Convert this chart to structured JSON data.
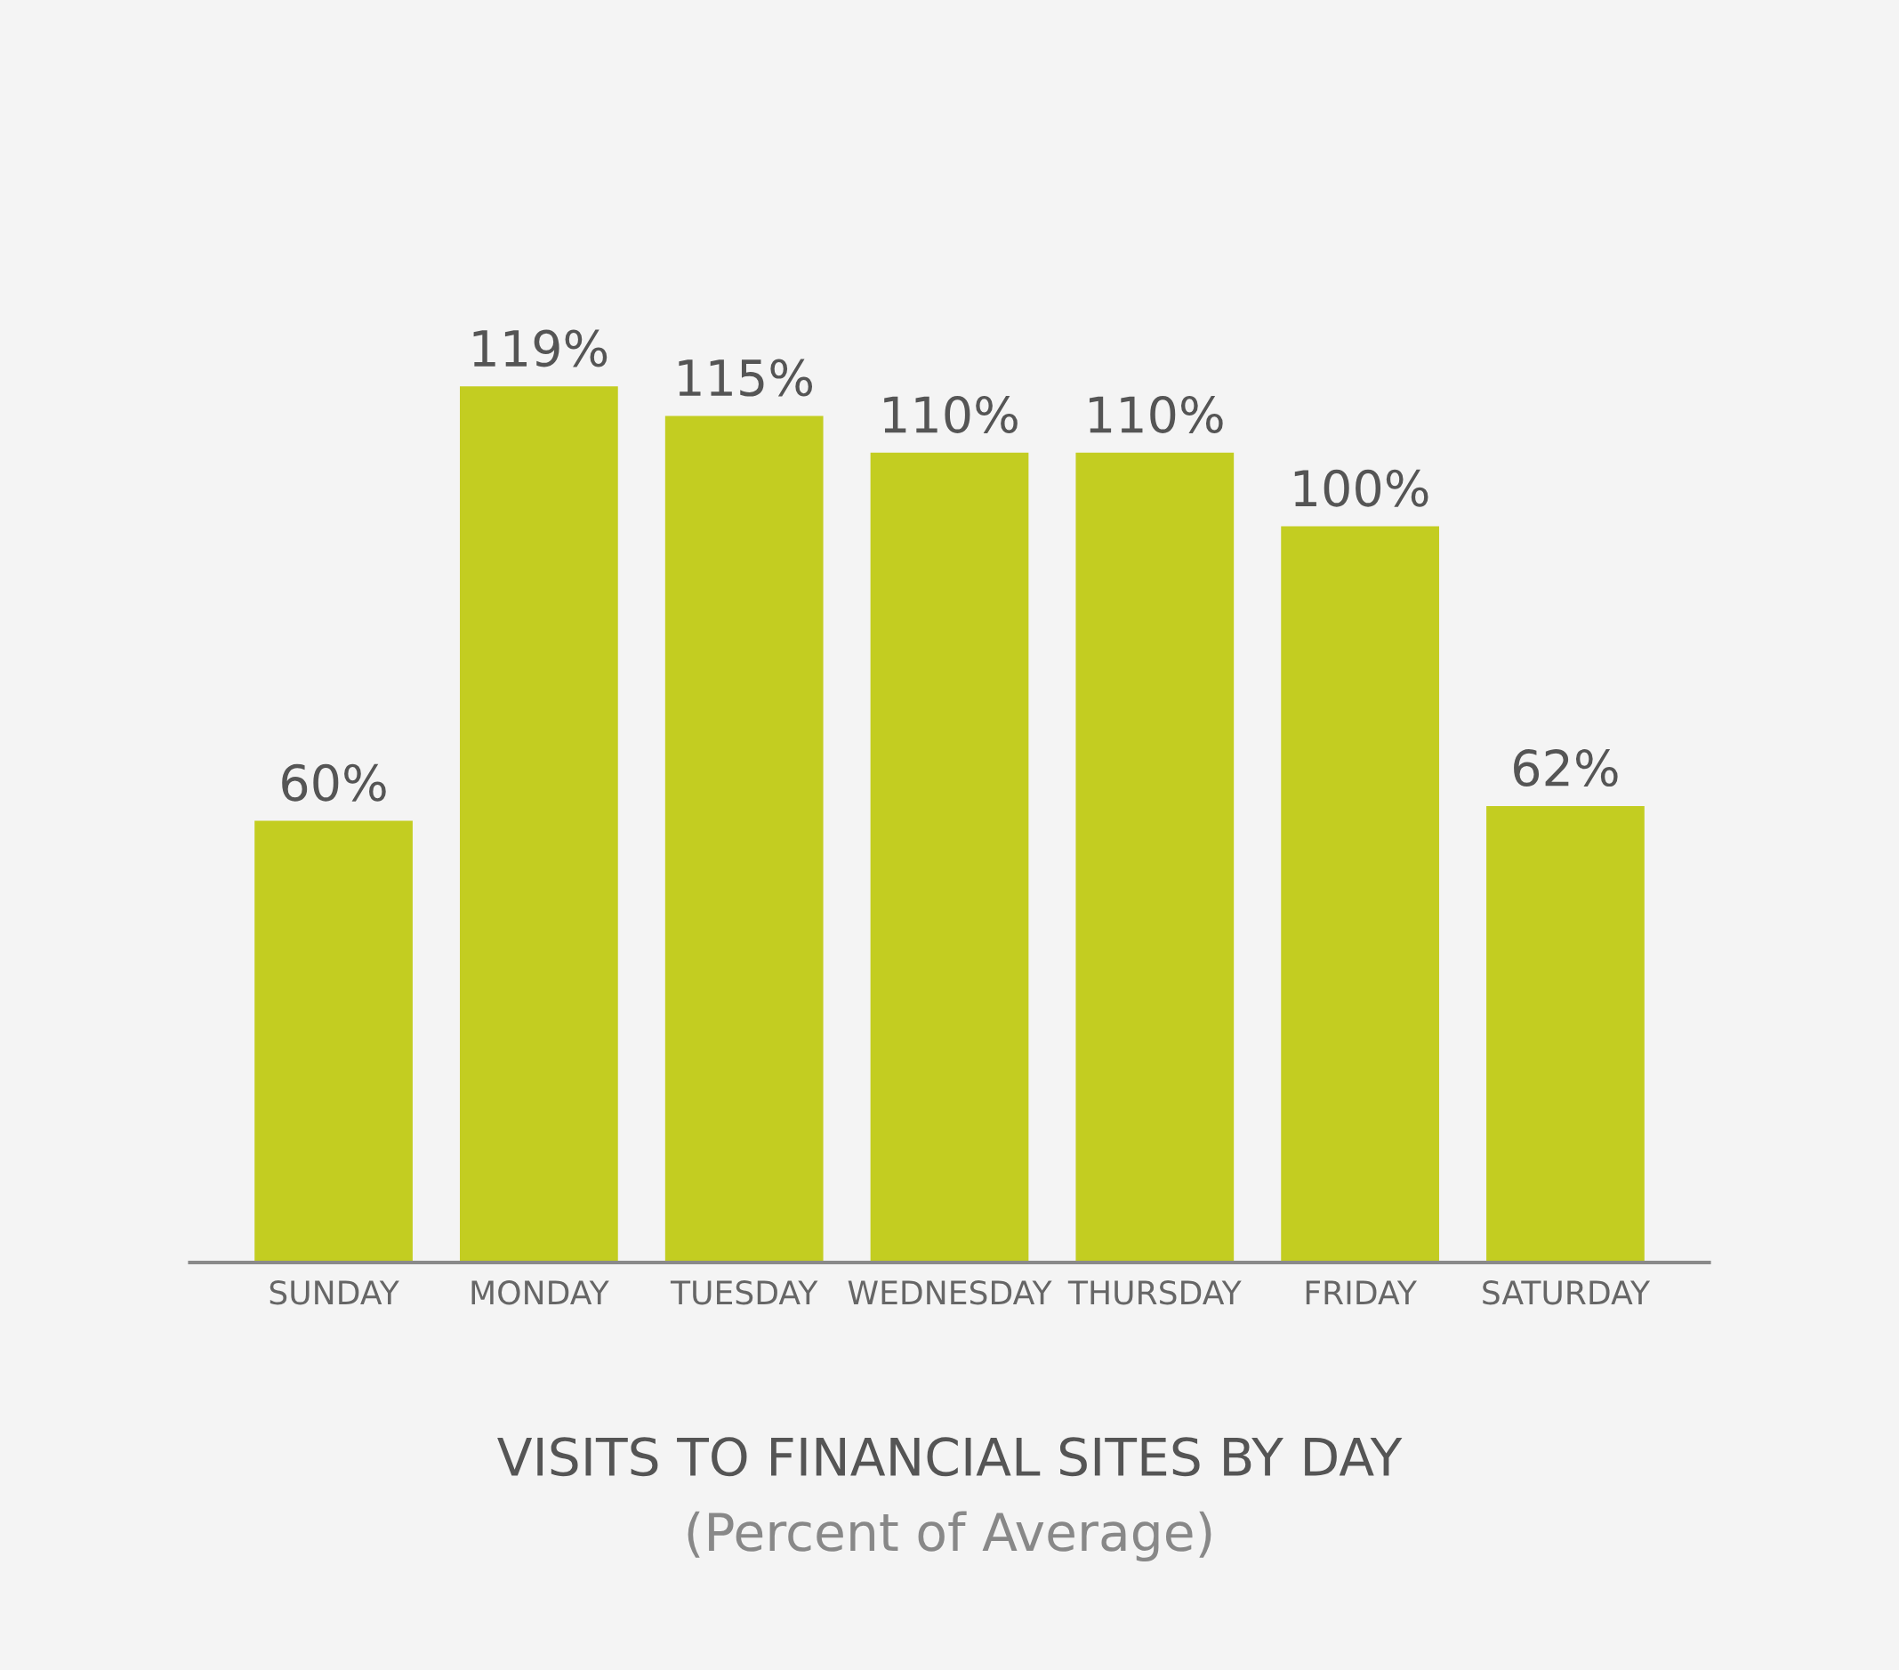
{
  "chart_data": {
    "type": "bar",
    "title": "VISITS TO FINANCIAL SITES BY DAY",
    "subtitle": "(Percent of Average)",
    "categories": [
      "SUNDAY",
      "MONDAY",
      "TUESDAY",
      "WEDNESDAY",
      "THURSDAY",
      "FRIDAY",
      "SATURDAY"
    ],
    "values": [
      60,
      119,
      115,
      110,
      110,
      100,
      62
    ],
    "value_labels": [
      "60%",
      "119%",
      "115%",
      "110%",
      "110%",
      "100%",
      "62%"
    ],
    "color": "#c3cd21",
    "grid": false,
    "legend": false
  }
}
